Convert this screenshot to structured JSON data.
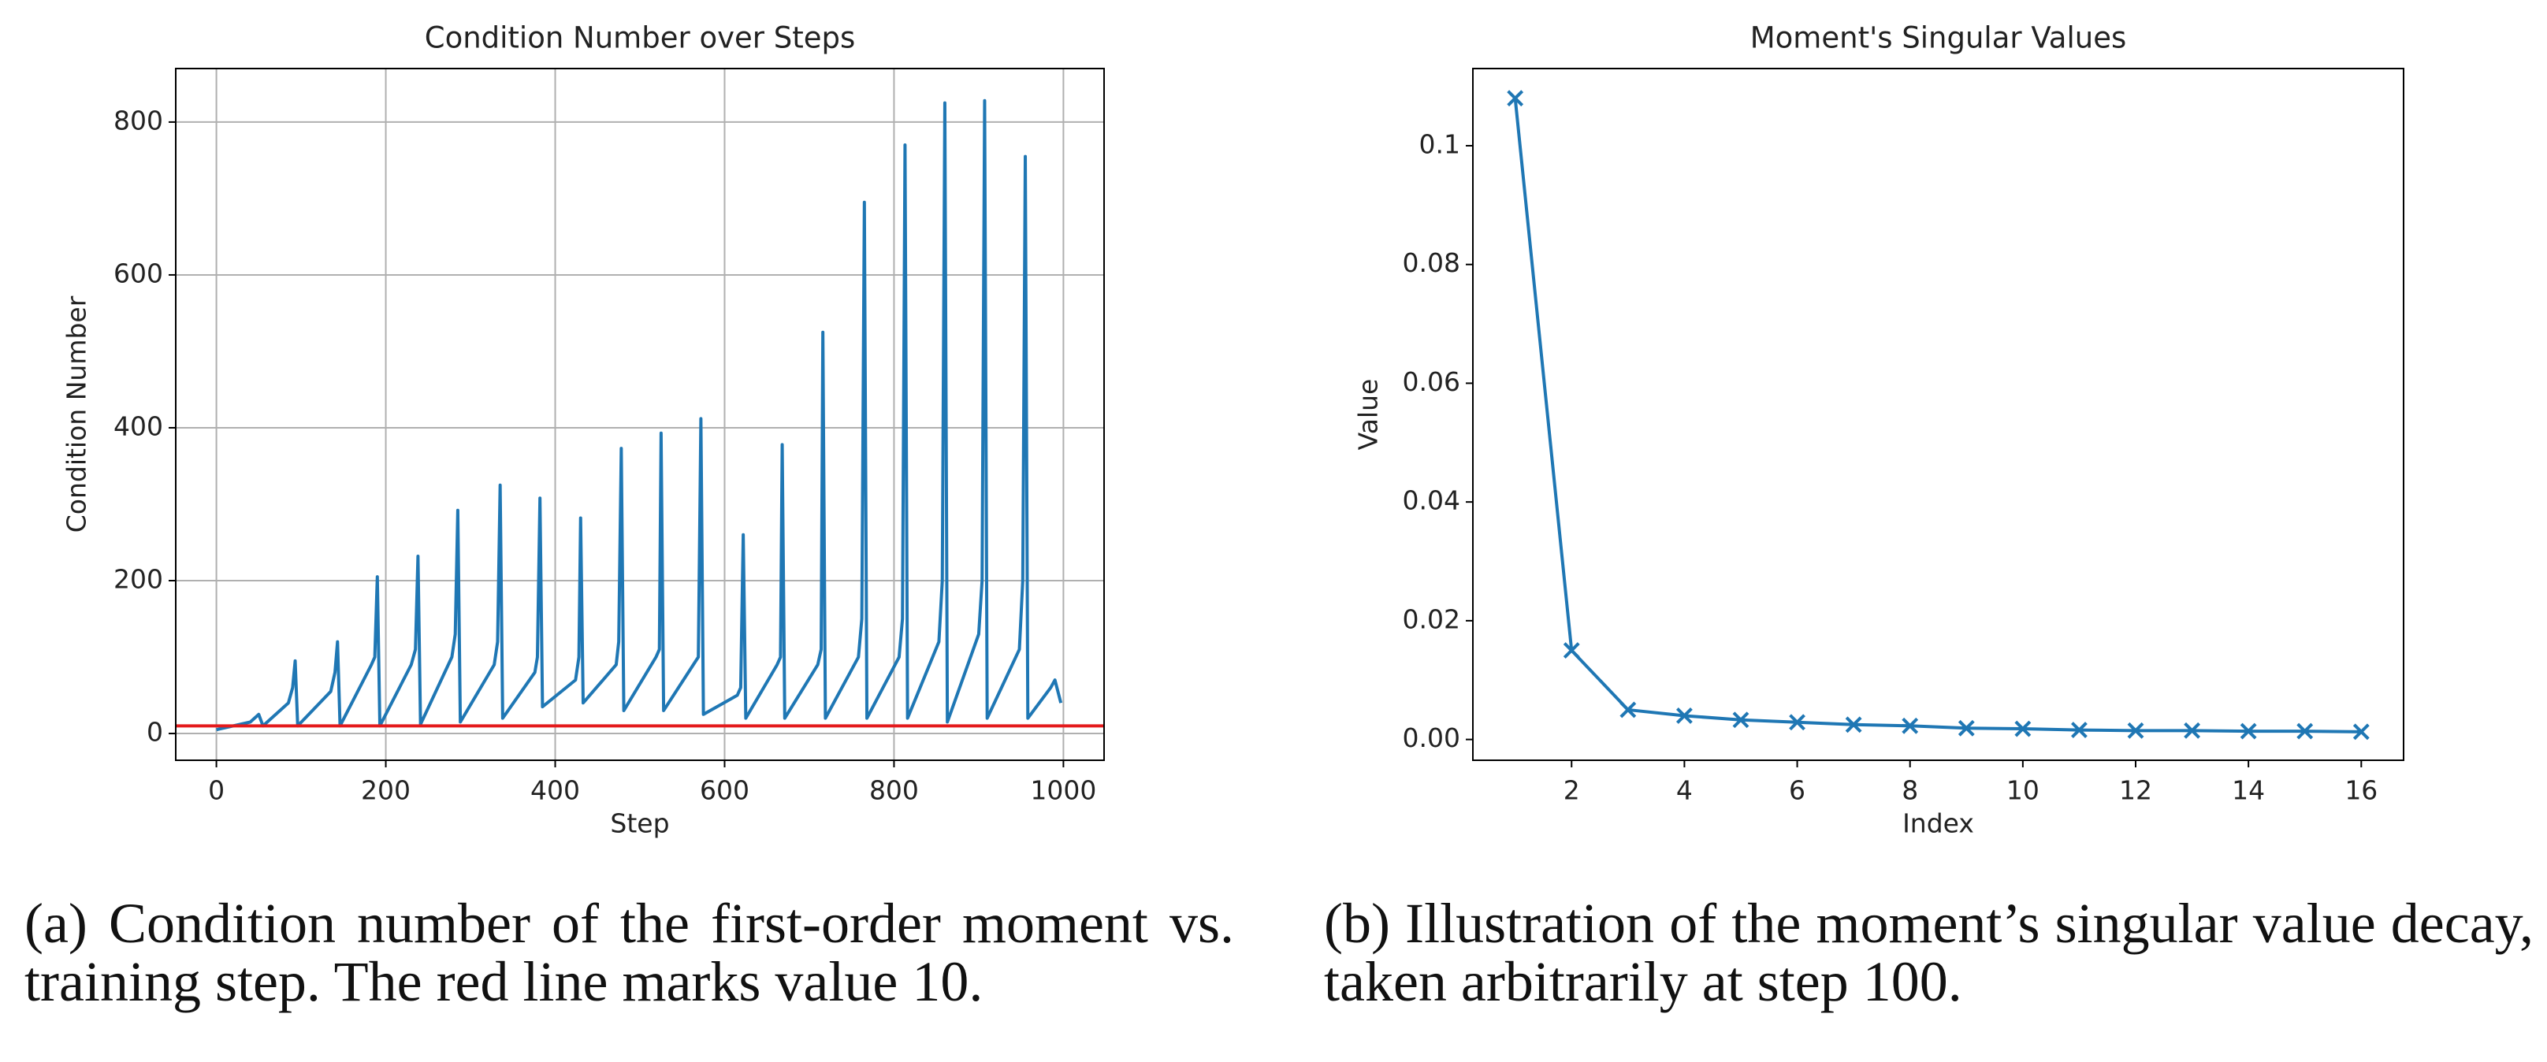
{
  "chart_data": [
    {
      "type": "line",
      "title": "Condition Number over Steps",
      "xlabel": "Step",
      "ylabel": "Condition Number",
      "x": [
        0,
        40,
        50,
        55,
        85,
        90,
        93,
        96,
        135,
        140,
        143,
        146,
        183,
        187,
        190,
        193,
        230,
        235,
        238,
        241,
        278,
        282,
        285,
        288,
        328,
        332,
        335,
        338,
        376,
        379,
        382,
        385,
        424,
        428,
        430,
        433,
        472,
        475,
        478,
        481,
        519,
        523,
        525,
        528,
        566,
        569,
        572,
        575,
        615,
        619,
        622,
        625,
        662,
        666,
        668,
        671,
        710,
        714,
        716,
        719,
        758,
        762,
        765,
        768,
        806,
        810,
        813,
        816,
        853,
        857,
        860,
        863,
        900,
        904,
        907,
        910,
        948,
        952,
        955,
        958,
        985,
        990,
        997
      ],
      "series": [
        {
          "color": "#1f77b4",
          "values": [
            5,
            15,
            25,
            10,
            40,
            60,
            95,
            10,
            55,
            80,
            120,
            10,
            90,
            100,
            205,
            10,
            90,
            110,
            232,
            12,
            100,
            130,
            292,
            15,
            90,
            120,
            325,
            20,
            80,
            100,
            308,
            35,
            70,
            100,
            282,
            40,
            90,
            120,
            373,
            30,
            100,
            110,
            393,
            30,
            95,
            100,
            412,
            25,
            50,
            60,
            260,
            20,
            90,
            100,
            378,
            20,
            90,
            110,
            525,
            20,
            100,
            150,
            695,
            20,
            100,
            150,
            770,
            20,
            120,
            200,
            825,
            15,
            130,
            200,
            828,
            20,
            110,
            200,
            755,
            20,
            60,
            70,
            40
          ]
        }
      ],
      "hline": {
        "value": 10,
        "color": "#e41a1c"
      },
      "xlim": [
        -48,
        1048
      ],
      "xticks": [
        0,
        200,
        400,
        600,
        800,
        1000
      ],
      "ylim": [
        -35,
        870
      ],
      "yticks": [
        0,
        200,
        400,
        600,
        800
      ],
      "grid": true,
      "markers": false
    },
    {
      "type": "line",
      "title": "Moment's Singular Values",
      "xlabel": "Index",
      "ylabel": "Value",
      "x": [
        1,
        2,
        3,
        4,
        5,
        6,
        7,
        8,
        9,
        10,
        11,
        12,
        13,
        14,
        15,
        16
      ],
      "series": [
        {
          "color": "#1f77b4",
          "values": [
            0.108,
            0.015,
            0.005,
            0.004,
            0.0033,
            0.0029,
            0.0025,
            0.0023,
            0.0019,
            0.0018,
            0.0016,
            0.0015,
            0.0015,
            0.0014,
            0.0014,
            0.0013
          ]
        }
      ],
      "xlim": [
        0.25,
        16.75
      ],
      "xticks": [
        2,
        4,
        6,
        8,
        10,
        12,
        14,
        16
      ],
      "ylim": [
        -0.0035,
        0.113
      ],
      "yticks": [
        {
          "value": 0,
          "label": "0.00"
        },
        {
          "value": 0.02,
          "label": "0.02"
        },
        {
          "value": 0.04,
          "label": "0.04"
        },
        {
          "value": 0.06,
          "label": "0.06"
        },
        {
          "value": 0.08,
          "label": "0.08"
        },
        0.1
      ],
      "grid": false,
      "markers": true
    }
  ],
  "captions": [
    "(a) Condition number of the first-order moment vs. training step. The red line marks value 10.",
    "(b) Illustration of the moment’s singular value decay, taken arbitrarily at step 100."
  ]
}
